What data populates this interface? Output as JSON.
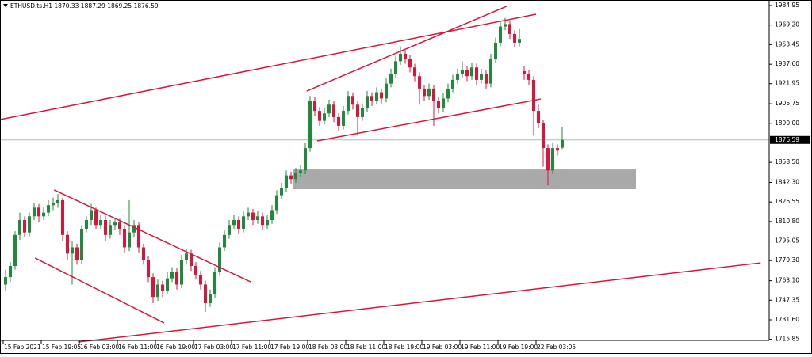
{
  "chart_data": {
    "type": "candlestick",
    "title": "ETHUSD.ts.H1  1870.33 1887.29 1869.25 1876.59",
    "ylim": [
      1715,
      1989.4
    ],
    "yticks": [
      1984.95,
      {
        "value": 1969.2,
        "label": "1969.20"
      },
      1953.45,
      {
        "value": 1937.6,
        "label": "1937.60"
      },
      1921.95,
      1905.75,
      {
        "value": 1890,
        "label": "1890.00"
      },
      {
        "value": 1858.5,
        "label": "1858.50"
      },
      {
        "value": 1842.3,
        "label": "1842.30"
      },
      1826.55,
      {
        "value": 1810.8,
        "label": "1810.80"
      },
      1795.05,
      {
        "value": 1779.3,
        "label": "1779.30"
      },
      {
        "value": 1763.1,
        "label": "1763.10"
      },
      1747.35,
      {
        "value": 1731.6,
        "label": "1731.60"
      },
      1715.85
    ],
    "xlabels": [
      "15 Feb 2021",
      "15 Feb 19:05",
      "16 Feb 03:00",
      "16 Feb 11:00",
      "16 Feb 19:00",
      "17 Feb 03:00",
      "17 Feb 11:00",
      "17 Feb 19:00",
      "18 Feb 03:00",
      "18 Feb 11:00",
      "18 Feb 19:00",
      "19 Feb 03:00",
      "19 Feb 11:00",
      "19 Feb 19:00",
      "22 Feb 03:05"
    ],
    "up_color": "#1f8a3a",
    "down_color": "#dc143c",
    "line_color": "#dc143c",
    "current_price": {
      "value": 1876.59,
      "label": "1876.59"
    },
    "candles": [
      [
        1760,
        1772,
        1755,
        1766
      ],
      [
        1766,
        1778,
        1762,
        1775
      ],
      [
        1775,
        1803,
        1772,
        1800
      ],
      [
        1800,
        1818,
        1796,
        1812
      ],
      [
        1812,
        1815,
        1798,
        1802
      ],
      [
        1802,
        1818,
        1799,
        1815
      ],
      [
        1815,
        1826,
        1812,
        1822
      ],
      [
        1822,
        1825,
        1810,
        1815
      ],
      [
        1815,
        1822,
        1812,
        1818
      ],
      [
        1818,
        1828,
        1815,
        1824
      ],
      [
        1824,
        1830,
        1820,
        1826
      ],
      [
        1826,
        1833,
        1822,
        1828
      ],
      [
        1828,
        1830,
        1795,
        1800
      ],
      [
        1800,
        1803,
        1780,
        1785
      ],
      [
        1785,
        1795,
        1760,
        1790
      ],
      [
        1790,
        1793,
        1776,
        1780
      ],
      [
        1780,
        1808,
        1777,
        1805
      ],
      [
        1805,
        1815,
        1802,
        1812
      ],
      [
        1812,
        1825,
        1808,
        1820
      ],
      [
        1820,
        1822,
        1805,
        1808
      ],
      [
        1808,
        1816,
        1805,
        1812
      ],
      [
        1812,
        1815,
        1795,
        1800
      ],
      [
        1800,
        1812,
        1797,
        1808
      ],
      [
        1808,
        1814,
        1804,
        1810
      ],
      [
        1810,
        1813,
        1800,
        1805
      ],
      [
        1805,
        1808,
        1786,
        1790
      ],
      [
        1790,
        1828,
        1787,
        1802
      ],
      [
        1802,
        1812,
        1798,
        1808
      ],
      [
        1808,
        1810,
        1786,
        1790
      ],
      [
        1790,
        1793,
        1776,
        1780
      ],
      [
        1780,
        1783,
        1762,
        1766
      ],
      [
        1766,
        1769,
        1745,
        1750
      ],
      [
        1750,
        1764,
        1747,
        1760
      ],
      [
        1760,
        1763,
        1750,
        1755
      ],
      [
        1755,
        1770,
        1752,
        1765
      ],
      [
        1765,
        1774,
        1762,
        1770
      ],
      [
        1770,
        1773,
        1756,
        1760
      ],
      [
        1760,
        1784,
        1757,
        1780
      ],
      [
        1780,
        1789,
        1776,
        1785
      ],
      [
        1785,
        1788,
        1771,
        1775
      ],
      [
        1775,
        1778,
        1764,
        1768
      ],
      [
        1768,
        1771,
        1756,
        1760
      ],
      [
        1760,
        1763,
        1738,
        1745
      ],
      [
        1745,
        1756,
        1742,
        1752
      ],
      [
        1752,
        1774,
        1749,
        1770
      ],
      [
        1770,
        1794,
        1767,
        1790
      ],
      [
        1790,
        1804,
        1787,
        1800
      ],
      [
        1800,
        1812,
        1797,
        1808
      ],
      [
        1808,
        1816,
        1805,
        1812
      ],
      [
        1812,
        1815,
        1801,
        1805
      ],
      [
        1805,
        1819,
        1802,
        1815
      ],
      [
        1815,
        1822,
        1812,
        1818
      ],
      [
        1818,
        1821,
        1808,
        1812
      ],
      [
        1812,
        1819,
        1809,
        1815
      ],
      [
        1815,
        1818,
        1804,
        1808
      ],
      [
        1808,
        1816,
        1805,
        1812
      ],
      [
        1812,
        1824,
        1809,
        1820
      ],
      [
        1820,
        1836,
        1817,
        1832
      ],
      [
        1832,
        1842,
        1829,
        1838
      ],
      [
        1838,
        1852,
        1835,
        1848
      ],
      [
        1848,
        1851,
        1841,
        1845
      ],
      [
        1845,
        1854,
        1842,
        1850
      ],
      [
        1850,
        1856,
        1847,
        1852
      ],
      [
        1852,
        1874,
        1849,
        1870
      ],
      [
        1870,
        1912,
        1867,
        1908
      ],
      [
        1908,
        1911,
        1896,
        1900
      ],
      [
        1900,
        1903,
        1888,
        1892
      ],
      [
        1892,
        1902,
        1889,
        1898
      ],
      [
        1898,
        1909,
        1895,
        1905
      ],
      [
        1905,
        1908,
        1891,
        1895
      ],
      [
        1895,
        1898,
        1884,
        1888
      ],
      [
        1888,
        1904,
        1885,
        1900
      ],
      [
        1900,
        1916,
        1897,
        1912
      ],
      [
        1912,
        1915,
        1901,
        1905
      ],
      [
        1905,
        1908,
        1880,
        1895
      ],
      [
        1895,
        1906,
        1892,
        1902
      ],
      [
        1902,
        1916,
        1899,
        1912
      ],
      [
        1912,
        1915,
        1904,
        1908
      ],
      [
        1908,
        1919,
        1905,
        1915
      ],
      [
        1915,
        1918,
        1906,
        1910
      ],
      [
        1910,
        1926,
        1907,
        1922
      ],
      [
        1922,
        1934,
        1919,
        1930
      ],
      [
        1930,
        1944,
        1927,
        1940
      ],
      [
        1940,
        1952,
        1937,
        1946
      ],
      [
        1946,
        1949,
        1938,
        1942
      ],
      [
        1942,
        1945,
        1931,
        1935
      ],
      [
        1935,
        1938,
        1924,
        1928
      ],
      [
        1928,
        1931,
        1905,
        1918
      ],
      [
        1918,
        1921,
        1908,
        1912
      ],
      [
        1912,
        1922,
        1909,
        1918
      ],
      [
        1918,
        1921,
        1888,
        1908
      ],
      [
        1908,
        1911,
        1898,
        1902
      ],
      [
        1902,
        1914,
        1899,
        1910
      ],
      [
        1910,
        1922,
        1907,
        1918
      ],
      [
        1918,
        1929,
        1915,
        1925
      ],
      [
        1925,
        1934,
        1922,
        1930
      ],
      [
        1930,
        1940,
        1927,
        1933
      ],
      [
        1933,
        1936,
        1924,
        1928
      ],
      [
        1928,
        1939,
        1925,
        1935
      ],
      [
        1935,
        1938,
        1921,
        1925
      ],
      [
        1925,
        1934,
        1922,
        1930
      ],
      [
        1930,
        1933,
        1918,
        1922
      ],
      [
        1922,
        1946,
        1919,
        1942
      ],
      [
        1942,
        1959,
        1939,
        1955
      ],
      [
        1955,
        1972,
        1952,
        1968
      ],
      [
        1968,
        1975,
        1965,
        1970
      ],
      [
        1970,
        1973,
        1958,
        1962
      ],
      [
        1962,
        1965,
        1951,
        1955
      ],
      [
        1955,
        1966,
        1952,
        1958
      ],
      [
        1932,
        1936,
        1925,
        1930
      ],
      [
        1930,
        1933,
        1921,
        1925
      ],
      [
        1925,
        1928,
        1880,
        1900
      ],
      [
        1900,
        1905,
        1886,
        1890
      ],
      [
        1890,
        1893,
        1855,
        1870
      ],
      [
        1870,
        1873,
        1840,
        1852
      ],
      [
        1852,
        1874,
        1849,
        1870
      ],
      [
        1870,
        1873,
        1864,
        1868
      ],
      [
        1870.33,
        1887.29,
        1869.25,
        1876.59
      ]
    ],
    "trendlines": [
      [
        [
          -1.17,
          1893.0
        ],
        [
          111.5,
          1977.9
        ]
      ],
      [
        [
          63.3,
          1916.0
        ],
        [
          105.3,
          1984.3
        ]
      ],
      [
        [
          65.5,
          1875.8
        ],
        [
          112.5,
          1909.6
        ]
      ],
      [
        [
          10.2,
          1836.3
        ],
        [
          51.5,
          1762.2
        ]
      ],
      [
        [
          6.2,
          1781.4
        ],
        [
          33.3,
          1729.1
        ]
      ],
      [
        [
          15.2,
          1713.7
        ],
        [
          158.7,
          1777.5
        ]
      ]
    ],
    "zone": {
      "from": 60.5,
      "to": 132.5,
      "top": 1852.8,
      "bottom": 1836.9,
      "color": "#a9a9a9"
    }
  }
}
